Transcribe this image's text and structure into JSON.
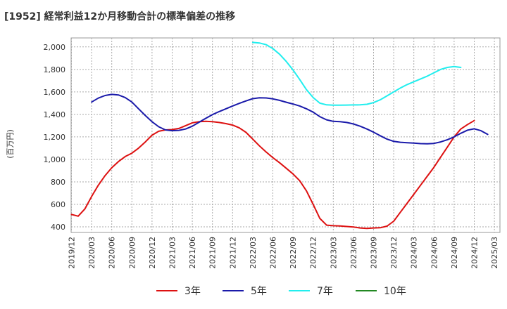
{
  "chart_data": {
    "type": "line",
    "title": "[1952]  経常利益12か月移動合計の標準偏差の推移",
    "ylabel": "(百万円)",
    "xlabel": "",
    "ylim": [
      350,
      2080
    ],
    "yticks": [
      400,
      600,
      800,
      1000,
      1200,
      1400,
      1600,
      1800,
      2000
    ],
    "ytick_labels": [
      "400",
      "600",
      "800",
      "1,000",
      "1,200",
      "1,400",
      "1,600",
      "1,800",
      "2,000"
    ],
    "xtick_labels": [
      "2019/12",
      "2020/03",
      "2020/06",
      "2020/09",
      "2020/12",
      "2021/03",
      "2021/06",
      "2021/09",
      "2021/12",
      "2022/03",
      "2022/06",
      "2022/09",
      "2022/12",
      "2023/03",
      "2023/06",
      "2023/09",
      "2023/12",
      "2024/03",
      "2024/06",
      "2024/09",
      "2024/12",
      "2025/03"
    ],
    "grid": true,
    "legend_position": "bottom",
    "series": [
      {
        "name": "3年",
        "color": "#dd1111",
        "start": "2019/12",
        "values": [
          510,
          495,
          560,
          670,
          770,
          855,
          925,
          980,
          1025,
          1055,
          1100,
          1155,
          1215,
          1250,
          1262,
          1265,
          1275,
          1300,
          1325,
          1335,
          1338,
          1335,
          1328,
          1318,
          1305,
          1280,
          1240,
          1180,
          1120,
          1065,
          1015,
          970,
          920,
          870,
          810,
          720,
          600,
          475,
          415,
          410,
          408,
          403,
          398,
          390,
          386,
          390,
          392,
          406,
          450,
          530,
          610,
          690,
          770,
          850,
          930,
          1020,
          1110,
          1200,
          1270,
          1310,
          1345
        ]
      },
      {
        "name": "5年",
        "color": "#1a1aaa",
        "start": "2020/03",
        "values": [
          1510,
          1545,
          1568,
          1578,
          1573,
          1550,
          1510,
          1450,
          1390,
          1335,
          1290,
          1262,
          1255,
          1258,
          1270,
          1295,
          1330,
          1365,
          1398,
          1425,
          1450,
          1475,
          1498,
          1520,
          1540,
          1548,
          1546,
          1538,
          1525,
          1508,
          1492,
          1475,
          1450,
          1420,
          1380,
          1352,
          1338,
          1335,
          1328,
          1315,
          1295,
          1270,
          1242,
          1210,
          1180,
          1160,
          1152,
          1148,
          1145,
          1140,
          1138,
          1142,
          1155,
          1175,
          1200,
          1232,
          1260,
          1272,
          1255,
          1222
        ]
      },
      {
        "name": "7年",
        "color": "#22eeee",
        "start": "2022/03",
        "values": [
          2040,
          2035,
          2020,
          1985,
          1935,
          1870,
          1795,
          1710,
          1620,
          1550,
          1500,
          1485,
          1482,
          1482,
          1483,
          1484,
          1485,
          1490,
          1505,
          1530,
          1565,
          1600,
          1635,
          1665,
          1690,
          1715,
          1740,
          1770,
          1800,
          1818,
          1825,
          1818
        ]
      },
      {
        "name": "10年",
        "color": "#228822",
        "start": "2024/12",
        "values": []
      }
    ]
  }
}
